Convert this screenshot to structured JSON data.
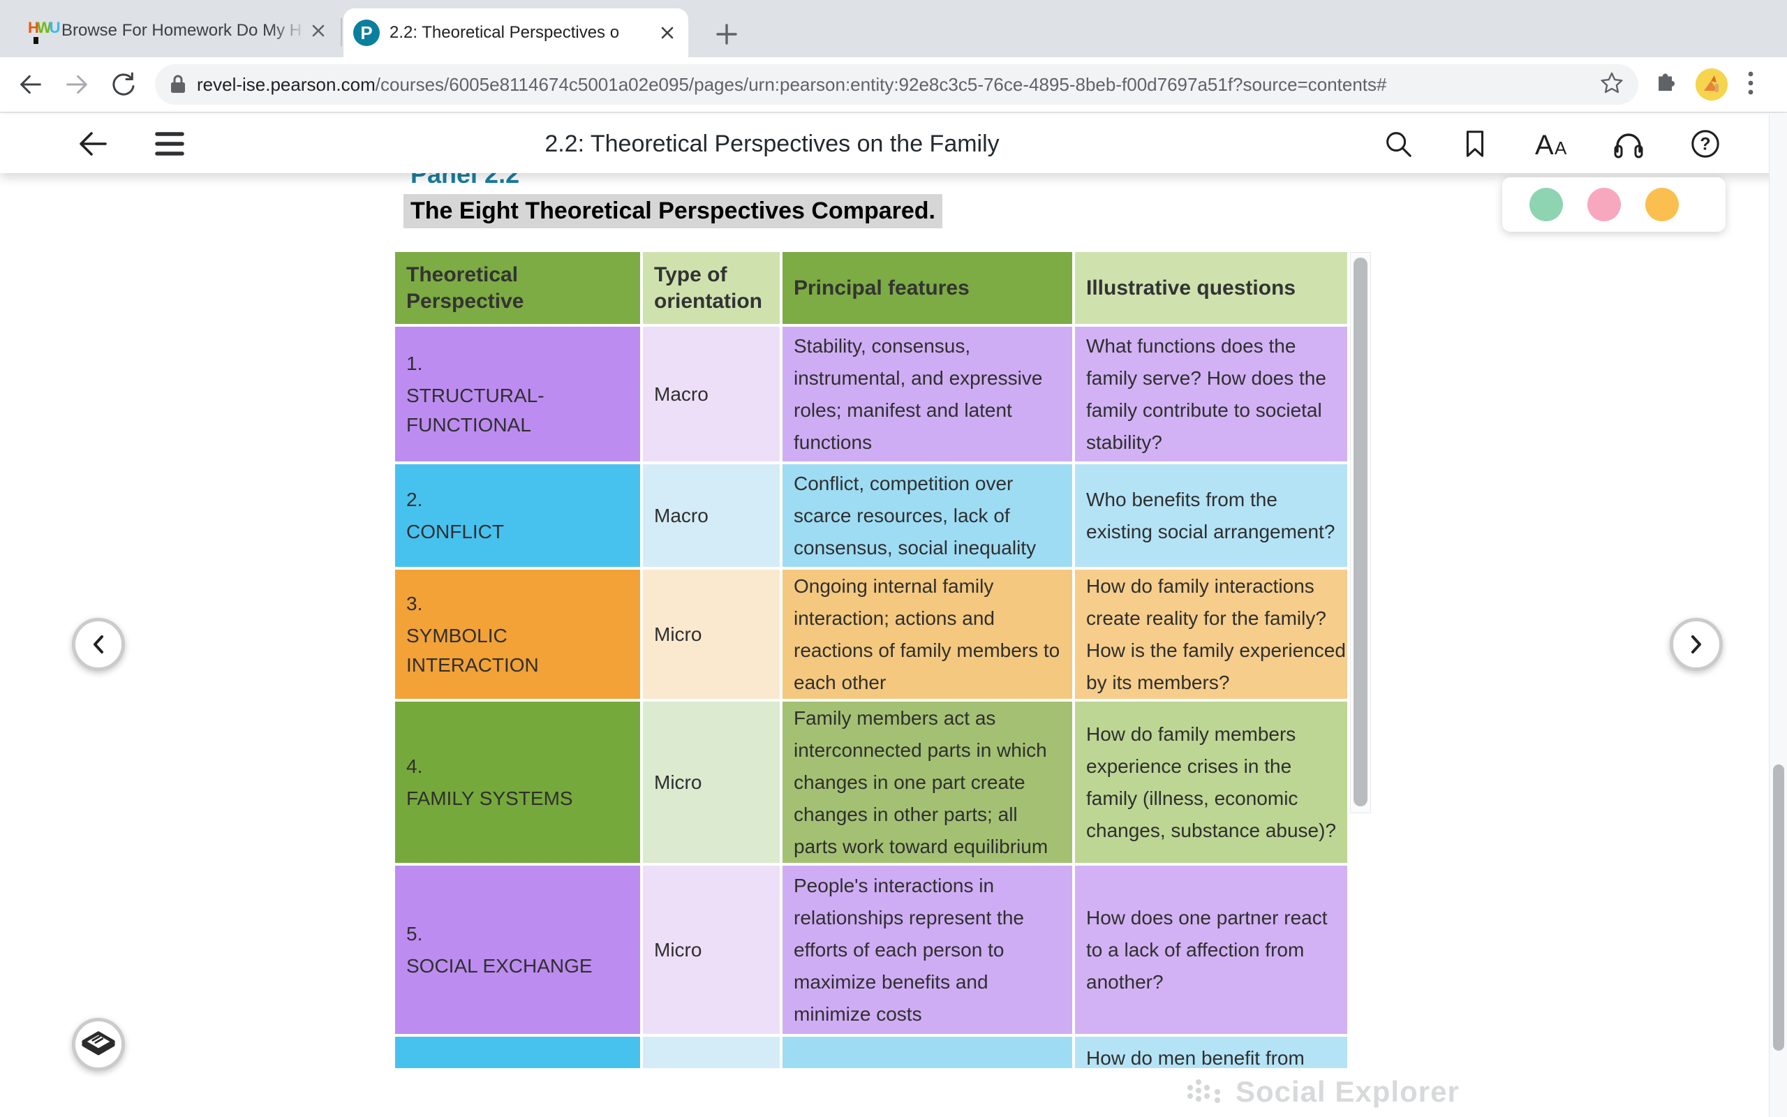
{
  "browser": {
    "tabs": [
      {
        "title": "Browse For Homework Do My H",
        "favicon": "homework-icon",
        "active": false
      },
      {
        "title": "2.2: Theoretical Perspectives o",
        "favicon": "pearson-icon",
        "active": true
      }
    ],
    "url": {
      "domain": "revel-ise.pearson.com",
      "path": "/courses/6005e8114674c5001a02e095/pages/urn:pearson:entity:92e8c3c5-76ce-4895-8beb-f00d7697a51f?source=contents#"
    }
  },
  "reader": {
    "title": "2.2: Theoretical Perspectives on the Family",
    "toolbar_icons": [
      "search-icon",
      "bookmark-icon",
      "text-size-icon",
      "audio-icon",
      "help-icon"
    ]
  },
  "page": {
    "panel_label": "Panel 2.2",
    "panel_title": "The Eight Theoretical Perspectives Compared.",
    "watermark": "Social Explorer"
  },
  "table": {
    "columns": [
      "Theoretical Perspective",
      "Type of orientation",
      "Principal features",
      "Illustrative questions"
    ],
    "rows": [
      {
        "number": "1.",
        "name": "STRUCTURAL-FUNCTIONAL",
        "orientation": "Macro",
        "features": "Stability, consensus, instrumental, and expressive roles; manifest and latent functions",
        "questions": "What functions does the family serve? How does the family contribute to societal stability?",
        "theme": "purple"
      },
      {
        "number": "2.",
        "name": "CONFLICT",
        "orientation": "Macro",
        "features": "Conflict, competition over scarce resources, lack of consensus, social inequality",
        "questions": "Who benefits from the existing social arrangement?",
        "theme": "blue"
      },
      {
        "number": "3.",
        "name": "SYMBOLIC INTERACTION",
        "orientation": "Micro",
        "features": "Ongoing internal family interaction; actions and reactions of family members to each other",
        "questions": "How do family interactions create reality for the family? How is the family experienced by its members?",
        "theme": "orange"
      },
      {
        "number": "4.",
        "name": "FAMILY SYSTEMS",
        "orientation": "Micro",
        "features": "Family members act as interconnected parts in which changes in one part create changes in other parts; all parts work toward equilibrium",
        "questions": "How do family members experience crises in the family (illness, economic changes, substance abuse)?",
        "theme": "green"
      },
      {
        "number": "5.",
        "name": "SOCIAL EXCHANGE",
        "orientation": "Micro",
        "features": "People's interactions in relationships represent the efforts of each person to maximize benefits and minimize costs",
        "questions": "How does one partner react to a lack of affection from another?",
        "theme": "purple"
      },
      {
        "number": "",
        "name": "",
        "orientation": "",
        "features": "",
        "questions": "How do men benefit from",
        "theme": "blue",
        "partial": true
      }
    ]
  },
  "colors": {
    "header_dark_green": "#7cac43",
    "header_light_green": "#cfe2ae",
    "purple": {
      "c1": "#bd8cf0",
      "c2": "#eedff8",
      "c3": "#cfadf4",
      "c4": "#d2b2f4"
    },
    "blue": {
      "c1": "#47c2ef",
      "c2": "#d4ecf7",
      "c3": "#9edcf4",
      "c4": "#b4e3f6"
    },
    "orange": {
      "c1": "#f2a237",
      "c2": "#fae9cf",
      "c3": "#f4c87e",
      "c4": "#f6cd8b"
    },
    "green": {
      "c1": "#76a93c",
      "c2": "#dcead0",
      "c3": "#a4c173",
      "c4": "#bdd694"
    },
    "highlight_gray": "#d6d6d6",
    "panel_label_teal": "#1b7e9e",
    "dot_green": "#8fd4b2",
    "dot_pink": "#f8a8be",
    "dot_orange": "#fbbf4f"
  }
}
